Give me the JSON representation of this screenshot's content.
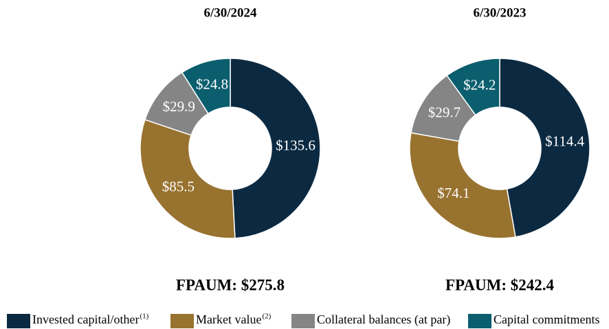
{
  "chart_data": [
    {
      "type": "pie",
      "title": "6/30/2024",
      "subtitle": "FPAUM: $275.8",
      "categories": [
        "Invested capital/other",
        "Market value",
        "Collateral balances (at par)",
        "Capital commitments"
      ],
      "category_notes": [
        "(1)",
        "(2)",
        null,
        null
      ],
      "colors": [
        "#0b2a42",
        "#98722f",
        "#858585",
        "#0b5e6e"
      ],
      "values": [
        135.6,
        85.5,
        29.9,
        24.8
      ],
      "value_labels": [
        "$135.6",
        "$85.5",
        "$29.9",
        "$24.8"
      ]
    },
    {
      "type": "pie",
      "title": "6/30/2023",
      "subtitle": "FPAUM: $242.4",
      "categories": [
        "Invested capital/other",
        "Market value",
        "Collateral balances (at par)",
        "Capital commitments"
      ],
      "colors": [
        "#0b2a42",
        "#98722f",
        "#858585",
        "#0b5e6e"
      ],
      "values": [
        114.4,
        74.1,
        29.7,
        24.2
      ],
      "value_labels": [
        "$114.4",
        "$74.1",
        "$29.7",
        "$24.2"
      ]
    }
  ]
}
